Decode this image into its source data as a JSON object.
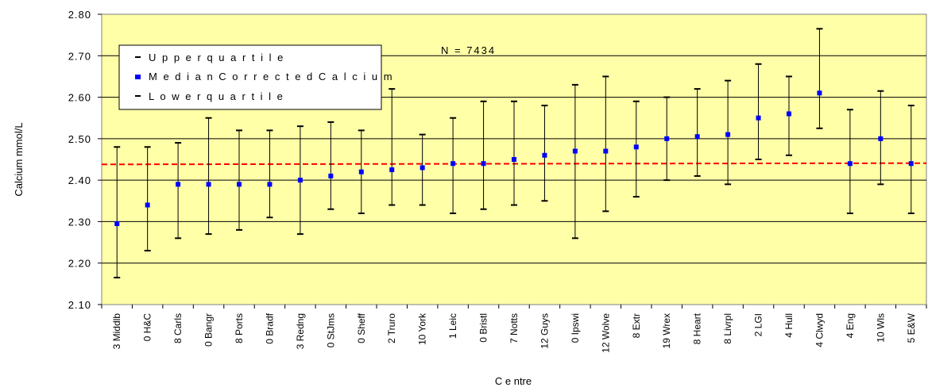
{
  "chart_data": {
    "type": "error_bar",
    "title": "",
    "xlabel": "C e ntre",
    "ylabel": "Calcium mmol/L",
    "ylim": [
      2.1,
      2.8
    ],
    "yticks": [
      2.1,
      2.2,
      2.3,
      2.4,
      2.5,
      2.6,
      2.7,
      2.8
    ],
    "ytick_labels": [
      "2.10",
      "2.20",
      "2.30",
      "2.40",
      "2.50",
      "2.60",
      "2.70",
      "2.80"
    ],
    "grid": "horizontal",
    "background": "#ffffa8",
    "categories": [
      "3 Middlb",
      "0 H&C",
      "8 Carls",
      "0 Bangr",
      "8 Ports",
      "0 Bradf",
      "3 Redng",
      "0 StJms",
      "0 Sheff",
      "2 Truro",
      "10 York",
      "1 Leic",
      "0 Bristl",
      "7 Notts",
      "12 Guys",
      "0 Ipswi",
      "12 Wolve",
      "8 Extr",
      "19 Wrex",
      "8 Heart",
      "8 Livrpl",
      "2 LGI",
      "4 Hull",
      "4 Clwyd",
      "4 Eng",
      "10 Wls",
      "5 E&W"
    ],
    "series": [
      {
        "name": "U p p e r  q u a r t i l e",
        "color": "#000000",
        "values": [
          2.48,
          2.48,
          2.49,
          2.55,
          2.52,
          2.52,
          2.53,
          2.54,
          2.52,
          2.62,
          2.51,
          2.55,
          2.59,
          2.59,
          2.58,
          2.63,
          2.65,
          2.59,
          2.6,
          2.62,
          2.64,
          2.68,
          2.65,
          2.765,
          2.57,
          2.615,
          2.58
        ]
      },
      {
        "name": "M e d i a n  C o r r e c t e d  C a l c i u m",
        "color": "#0000ff",
        "values": [
          2.295,
          2.34,
          2.39,
          2.39,
          2.39,
          2.39,
          2.4,
          2.41,
          2.42,
          2.425,
          2.43,
          2.44,
          2.44,
          2.45,
          2.46,
          2.47,
          2.47,
          2.48,
          2.5,
          2.505,
          2.51,
          2.55,
          2.56,
          2.61,
          2.44,
          2.5,
          2.44
        ]
      },
      {
        "name": "L o w e r  q u a r t i l e",
        "color": "#000000",
        "values": [
          2.165,
          2.23,
          2.26,
          2.27,
          2.28,
          2.31,
          2.27,
          2.33,
          2.32,
          2.34,
          2.34,
          2.32,
          2.33,
          2.34,
          2.35,
          2.26,
          2.325,
          2.36,
          2.4,
          2.41,
          2.39,
          2.45,
          2.46,
          2.525,
          2.32,
          2.39,
          2.32
        ]
      }
    ],
    "reference_line": {
      "from": 2.438,
      "to": 2.441,
      "color": "#ff0000",
      "style": "dashed"
    },
    "annotation": "N  =  7434",
    "legend_position": "top-left"
  }
}
